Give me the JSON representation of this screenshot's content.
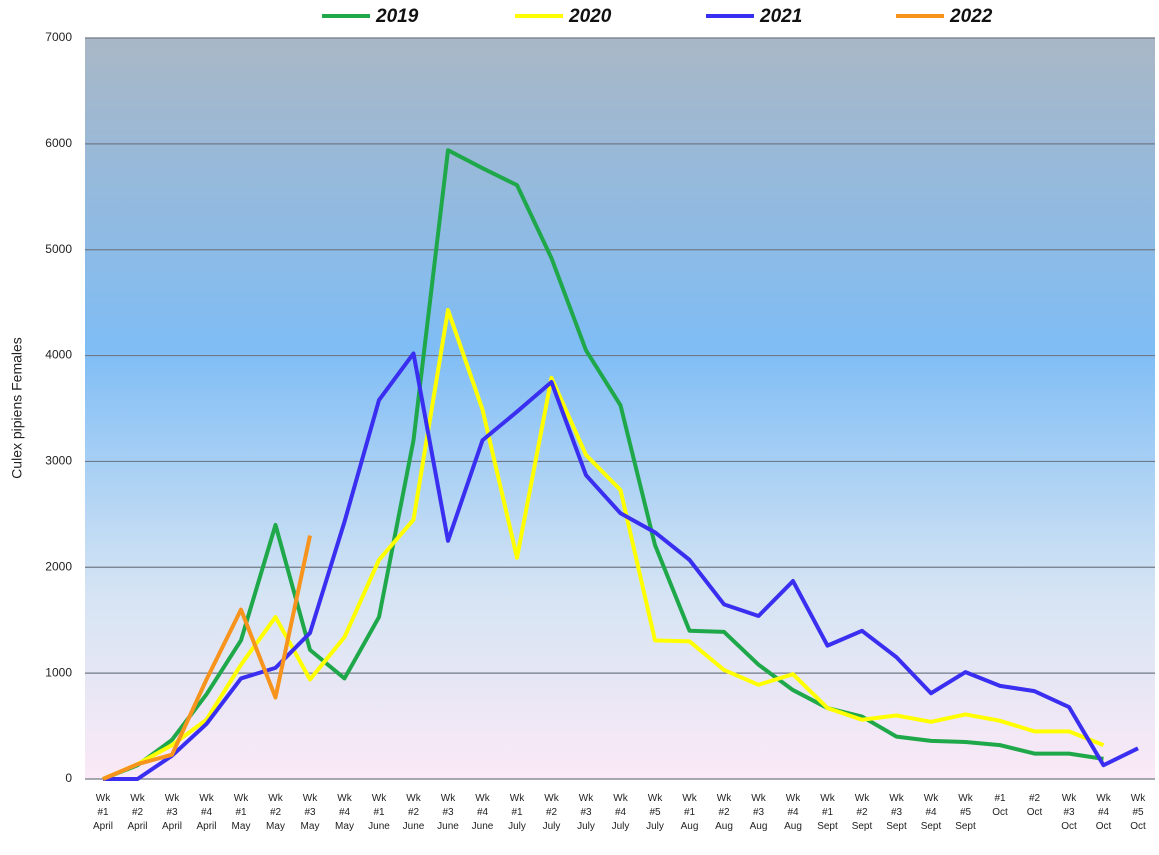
{
  "chart_data": {
    "type": "line",
    "y_label": "Culex pipiens Females",
    "categories": [
      "Wk\n#1\nApril",
      "Wk\n#2\nApril",
      "Wk\n#3\nApril",
      "Wk\n#4\nApril",
      "Wk\n#1\nMay",
      "Wk\n#2\nMay",
      "Wk\n#3\nMay",
      "Wk\n#4\nMay",
      "Wk\n#1\nJune",
      "Wk\n#2\nJune",
      "Wk\n#3\nJune",
      "Wk\n#4\nJune",
      "Wk\n#1\nJuly",
      "Wk\n#2\nJuly",
      "Wk\n#3\nJuly",
      "Wk\n#4\nJuly",
      "Wk\n#5\nJuly",
      "Wk\n#1\nAug",
      "Wk\n#2\nAug",
      "Wk\n#3\nAug",
      "Wk\n#4\nAug",
      "Wk\n#1\nSept",
      "Wk\n#2\nSept",
      "Wk\n#3\nSept",
      "Wk\n#4\nSept",
      "Wk\n#5\nSept",
      "#1\nOct",
      "#2\nOct",
      "Wk\n#3\nOct",
      "Wk\n#4\nOct",
      "Wk\n#5\nOct"
    ],
    "series": [
      {
        "name": "2019",
        "color": "#1fa84a",
        "values": [
          0,
          130,
          370,
          800,
          1310,
          2400,
          1220,
          950,
          1530,
          3200,
          5940,
          5770,
          5610,
          4920,
          4050,
          3530,
          2210,
          1400,
          1390,
          1080,
          840,
          670,
          590,
          400,
          360,
          350,
          320,
          240,
          240,
          190,
          null
        ]
      },
      {
        "name": "2020",
        "color": "#ffff00",
        "values": [
          0,
          140,
          320,
          560,
          1080,
          1530,
          940,
          1340,
          2070,
          2450,
          4430,
          3490,
          2090,
          3790,
          3060,
          2730,
          1310,
          1300,
          1030,
          890,
          990,
          670,
          560,
          600,
          540,
          610,
          550,
          450,
          450,
          320,
          null
        ]
      },
      {
        "name": "2021",
        "color": "#3a2ff0",
        "values": [
          0,
          0,
          220,
          520,
          950,
          1050,
          1380,
          2430,
          3580,
          4020,
          2250,
          3200,
          3470,
          3750,
          2870,
          2510,
          2330,
          2070,
          1650,
          1540,
          1870,
          1260,
          1400,
          1150,
          810,
          1010,
          880,
          830,
          680,
          130,
          290
        ]
      },
      {
        "name": "2022",
        "color": "#f7941d",
        "values": [
          0,
          140,
          230,
          940,
          1600,
          770,
          2300,
          null,
          null,
          null,
          null,
          null,
          null,
          null,
          null,
          null,
          null,
          null,
          null,
          null,
          null,
          null,
          null,
          null,
          null,
          null,
          null,
          null,
          null,
          null,
          null
        ]
      }
    ],
    "ylim": [
      0,
      7000
    ],
    "yticks": [
      0,
      1000,
      2000,
      3000,
      4000,
      5000,
      6000,
      7000
    ],
    "grid": true
  }
}
